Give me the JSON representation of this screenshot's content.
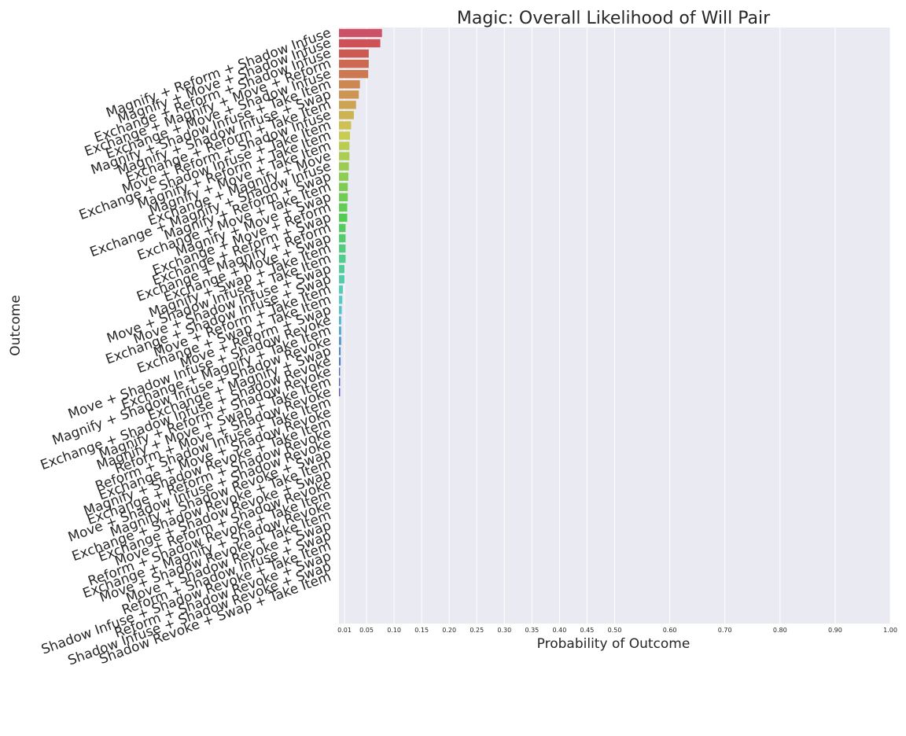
{
  "chart_data": {
    "type": "bar",
    "orientation": "horizontal",
    "title": "Magic: Overall Likelihood of Will Pair",
    "xlabel": "Probability of Outcome",
    "ylabel": "Outcome",
    "xlim": [
      0,
      1
    ],
    "xticks": [
      0.01,
      0.05,
      0.1,
      0.15,
      0.2,
      0.25,
      0.3,
      0.35,
      0.4,
      0.45,
      0.5,
      0.6,
      0.7,
      0.8,
      0.9,
      1.0
    ],
    "xtick_labels": [
      "0.01",
      "0.05",
      "0.10",
      "0.15",
      "0.20",
      "0.25",
      "0.30",
      "0.35",
      "0.40",
      "0.45",
      "0.50",
      "0.60",
      "0.70",
      "0.80",
      "0.90",
      "1.00"
    ],
    "grid": true,
    "categories": [
      "Magnify + Reform + Shadow Infuse",
      "Magnify + Move + Shadow Infuse",
      "Exchange + Reform + Shadow Infuse",
      "Exchange + Magnify + Move + Reform",
      "Exchange + Move + Shadow Infuse",
      "Magnify + Shadow Infuse + Take Item",
      "Magnify + Shadow Infuse + Swap",
      "Exchange + Reform + Take Item",
      "Move + Reform + Shadow Infuse",
      "Exchange + Shadow Infuse + Take Item",
      "Magnify + Reform + Take Item",
      "Magnify + Move + Take Item",
      "Exchange + Magnify + Move",
      "Exchange + Magnify + Shadow Infuse",
      "Magnify + Reform + Swap",
      "Exchange + Move + Take Item",
      "Magnify + Move + Swap",
      "Exchange + Move + Reform",
      "Exchange + Reform + Swap",
      "Exchange + Magnify + Reform",
      "Exchange + Move + Swap",
      "Magnify + Swap + Take Item",
      "Move + Shadow Infuse + Take Item",
      "Move + Shadow Infuse + Swap",
      "Exchange + Shadow Infuse + Swap",
      "Move + Reform + Take Item",
      "Exchange + Swap + Take Item",
      "Move + Reform + Swap",
      "Move + Shadow Infuse + Shadow Revoke",
      "Exchange + Magnify + Take Item",
      "Magnify + Shadow Infuse + Shadow Revoke",
      "Exchange + Magnify + Swap",
      "Exchange + Shadow Infuse + Shadow Revoke",
      "Magnify + Reform + Shadow Revoke",
      "Magnify + Move + Swap + Take Item",
      "Reform + Move + Shadow Revoke",
      "Reform + Shadow Infuse + Take Item",
      "Exchange + Move + Shadow Revoke",
      "Magnify + Shadow Revoke + Take Item",
      "Exchange + Reform + Shadow Revoke",
      "Move + Shadow Infuse + Shadow Revoke",
      "Magnify + Shadow Revoke + Swap",
      "Exchange + Shadow Revoke + Take Item",
      "Exchange + Shadow Revoke + Swap",
      "Move + Reform + Shadow Revoke",
      "Reform + Shadow Revoke + Take Item",
      "Exchange + Magnify + Shadow Revoke",
      "Move + Shadow Revoke + Take Item",
      "Move + Shadow Revoke + Swap",
      "Reform + Shadow Infuse + Swap",
      "Shadow Infuse + Shadow Revoke + Take Item",
      "Reform + Shadow Revoke + Swap",
      "Shadow Infuse + Shadow Revoke + Swap",
      "Shadow Revoke + Swap + Take Item"
    ],
    "values": [
      0.078,
      0.075,
      0.054,
      0.054,
      0.053,
      0.038,
      0.036,
      0.031,
      0.027,
      0.022,
      0.02,
      0.019,
      0.019,
      0.018,
      0.017,
      0.016,
      0.016,
      0.015,
      0.015,
      0.012,
      0.012,
      0.012,
      0.012,
      0.01,
      0.01,
      0.007,
      0.006,
      0.005,
      0.004,
      0.004,
      0.004,
      0.003,
      0.003,
      0.002,
      0.002,
      0.002,
      0,
      0,
      0,
      0,
      0,
      0,
      0,
      0,
      0,
      0,
      0,
      0,
      0,
      0,
      0,
      0,
      0,
      0
    ]
  }
}
